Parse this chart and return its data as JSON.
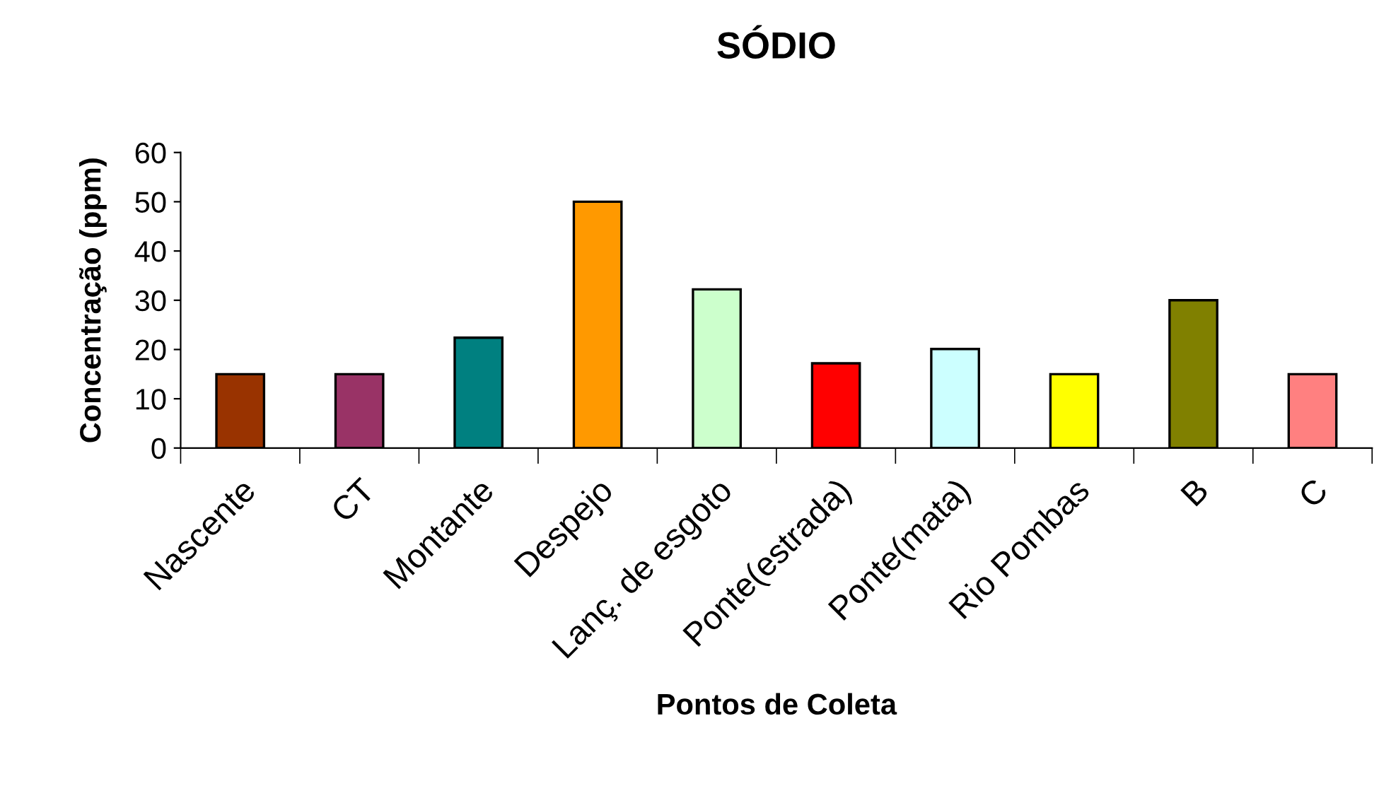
{
  "chart_data": {
    "type": "bar",
    "title": "SÓDIO",
    "xlabel": "Pontos de Coleta",
    "ylabel": "Concentração (ppm)",
    "categories": [
      "Nascente",
      "CT",
      "Montante",
      "Despejo",
      "Lanç. de esgoto",
      "Ponte(estrada)",
      "Ponte(mata)",
      "Rio Pombas",
      "B",
      "C"
    ],
    "values": [
      15,
      15,
      22.4,
      50,
      32.2,
      17.2,
      20.1,
      15,
      30,
      15
    ],
    "colors": [
      "#993300",
      "#993366",
      "#008080",
      "#ff9900",
      "#ccffcc",
      "#ff0000",
      "#ccffff",
      "#ffff00",
      "#808000",
      "#ff8080"
    ],
    "ylim": [
      0,
      60
    ],
    "yticks": [
      0,
      10,
      20,
      30,
      40,
      50,
      60
    ],
    "grid": false,
    "legend": false
  }
}
